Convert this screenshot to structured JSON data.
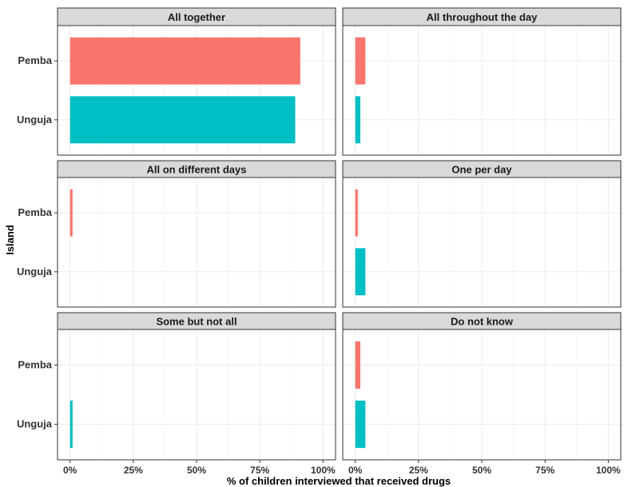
{
  "chart_data": {
    "type": "bar",
    "orientation": "horizontal",
    "xlabel": "% of children interviewed that received drugs",
    "ylabel": "Island",
    "xlim": [
      0,
      100
    ],
    "x_ticks": [
      "0%",
      "25%",
      "50%",
      "75%",
      "100%"
    ],
    "categories": [
      "Pemba",
      "Unguja"
    ],
    "colors": {
      "Pemba": "#F8766D",
      "Unguja": "#00BFC4"
    },
    "grid": true,
    "legend": "none",
    "panels": [
      {
        "title": "All together",
        "values": {
          "Pemba": 91,
          "Unguja": 89
        }
      },
      {
        "title": "All throughout the day",
        "values": {
          "Pemba": 4,
          "Unguja": 2
        }
      },
      {
        "title": "All on different days",
        "values": {
          "Pemba": 1,
          "Unguja": 0
        }
      },
      {
        "title": "One per day",
        "values": {
          "Pemba": 1,
          "Unguja": 4
        }
      },
      {
        "title": "Some but not all",
        "values": {
          "Pemba": 0,
          "Unguja": 1
        }
      },
      {
        "title": "Do not know",
        "values": {
          "Pemba": 2,
          "Unguja": 4
        }
      }
    ]
  }
}
